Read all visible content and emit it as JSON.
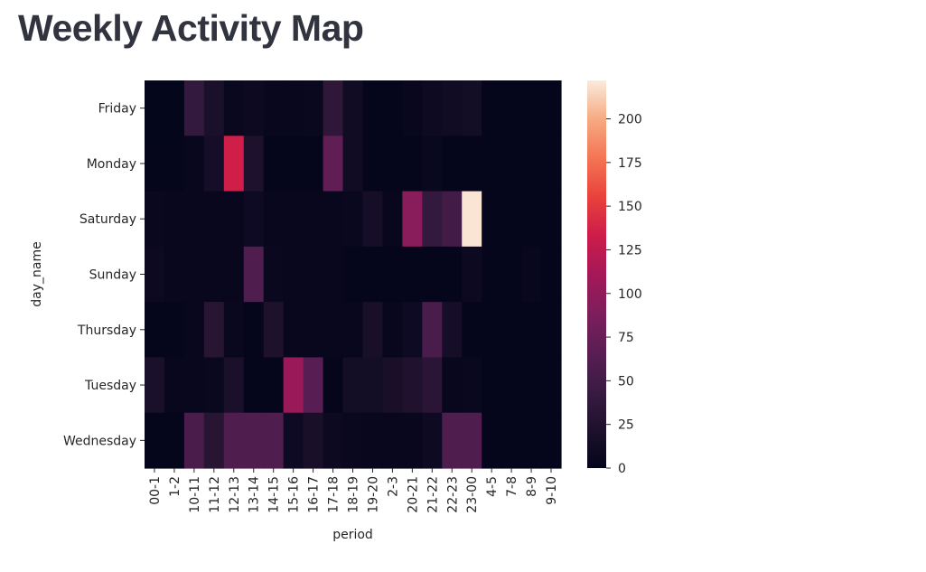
{
  "page": {
    "title": "Weekly Activity Map"
  },
  "chart_data": {
    "type": "heatmap",
    "xlabel": "period",
    "ylabel": "day_name",
    "x": [
      "00-1",
      "1-2",
      "10-11",
      "11-12",
      "12-13",
      "13-14",
      "14-15",
      "15-16",
      "16-17",
      "17-18",
      "18-19",
      "19-20",
      "2-3",
      "20-21",
      "21-22",
      "22-23",
      "23-00",
      "4-5",
      "7-8",
      "8-9",
      "9-10"
    ],
    "y": [
      "Friday",
      "Monday",
      "Saturday",
      "Sunday",
      "Thursday",
      "Tuesday",
      "Wednesday"
    ],
    "values": [
      [
        1,
        1,
        40,
        20,
        6,
        8,
        4,
        4,
        6,
        35,
        12,
        2,
        2,
        4,
        10,
        12,
        14,
        2,
        2,
        2,
        2
      ],
      [
        2,
        2,
        4,
        16,
        135,
        22,
        2,
        2,
        2,
        70,
        12,
        2,
        2,
        2,
        6,
        2,
        2,
        2,
        2,
        2,
        2
      ],
      [
        6,
        4,
        4,
        4,
        4,
        10,
        4,
        4,
        4,
        4,
        6,
        16,
        4,
        95,
        40,
        50,
        220,
        2,
        2,
        2,
        2
      ],
      [
        8,
        4,
        4,
        4,
        4,
        60,
        6,
        4,
        4,
        4,
        2,
        2,
        2,
        2,
        2,
        2,
        8,
        2,
        2,
        4,
        2
      ],
      [
        2,
        2,
        4,
        30,
        6,
        2,
        22,
        4,
        4,
        4,
        4,
        18,
        4,
        10,
        55,
        16,
        2,
        2,
        2,
        2,
        2
      ],
      [
        20,
        4,
        4,
        6,
        20,
        2,
        2,
        105,
        65,
        2,
        14,
        14,
        18,
        24,
        32,
        4,
        6,
        2,
        2,
        2,
        2
      ],
      [
        2,
        2,
        55,
        30,
        60,
        60,
        60,
        10,
        18,
        8,
        6,
        4,
        4,
        4,
        10,
        60,
        60,
        2,
        2,
        2,
        2
      ]
    ],
    "vmin": 0,
    "vmax": 222,
    "colorbar_ticks": [
      0,
      25,
      50,
      75,
      100,
      125,
      150,
      175,
      200
    ],
    "colormap": "rocket"
  }
}
